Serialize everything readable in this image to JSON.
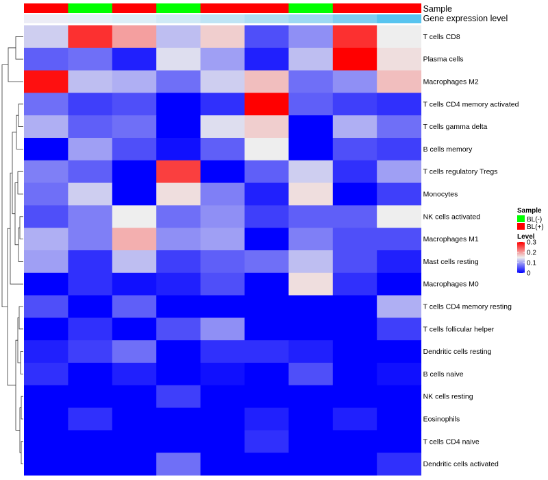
{
  "chart_data": {
    "type": "heatmap",
    "annotation_labels": [
      "Sample",
      "Gene expression level"
    ],
    "sample_groups": [
      "BL(+)",
      "BL(-)",
      "BL(+)",
      "BL(-)",
      "BL(+)",
      "BL(+)",
      "BL(-)",
      "BL(+)",
      "BL(+)"
    ],
    "expression_shades": [
      "#ececf6",
      "#e3f0f8",
      "#dceef7",
      "#cfe9f6",
      "#bfe4f5",
      "#aedef4",
      "#9cd8f3",
      "#7ecef2",
      "#58c4ef"
    ],
    "rows": [
      "T cells CD8",
      "Plasma cells",
      "Macrophages M2",
      "T cells CD4 memory activated",
      "T cells gamma delta",
      "B cells memory",
      "T cells regulatory  Tregs",
      "Monocytes",
      "NK cells activated",
      "Macrophages M1",
      "Mast cells resting",
      "Macrophages M0",
      "T cells CD4 memory resting",
      "T cells follicular helper",
      "Dendritic cells resting",
      "B cells naive",
      "NK cells resting",
      "Eosinophils",
      "T cells CD4 naive",
      "Dendritic cells activated"
    ],
    "values": [
      [
        0.13,
        0.27,
        0.2,
        0.12,
        0.17,
        0.05,
        0.09,
        0.27,
        0.15
      ],
      [
        0.06,
        0.07,
        0.02,
        0.14,
        0.1,
        0.02,
        0.12,
        0.3,
        0.16
      ],
      [
        0.29,
        0.12,
        0.11,
        0.07,
        0.13,
        0.18,
        0.07,
        0.09,
        0.18
      ],
      [
        0.07,
        0.04,
        0.05,
        0.0,
        0.03,
        0.3,
        0.06,
        0.04,
        0.03
      ],
      [
        0.11,
        0.06,
        0.07,
        0.0,
        0.14,
        0.17,
        0.0,
        0.11,
        0.07
      ],
      [
        0.0,
        0.1,
        0.05,
        0.01,
        0.06,
        0.15,
        0.0,
        0.05,
        0.04
      ],
      [
        0.08,
        0.06,
        0.0,
        0.26,
        0.0,
        0.06,
        0.13,
        0.03,
        0.1
      ],
      [
        0.07,
        0.13,
        0.0,
        0.16,
        0.08,
        0.02,
        0.16,
        0.0,
        0.04
      ],
      [
        0.05,
        0.08,
        0.15,
        0.07,
        0.09,
        0.04,
        0.06,
        0.06,
        0.15
      ],
      [
        0.11,
        0.08,
        0.19,
        0.09,
        0.1,
        0.0,
        0.08,
        0.05,
        0.05
      ],
      [
        0.1,
        0.03,
        0.12,
        0.04,
        0.06,
        0.07,
        0.12,
        0.05,
        0.02
      ],
      [
        0.0,
        0.03,
        0.01,
        0.02,
        0.05,
        0.0,
        0.16,
        0.03,
        0.0
      ],
      [
        0.05,
        0.0,
        0.06,
        0.0,
        0.0,
        0.0,
        0.0,
        0.0,
        0.11
      ],
      [
        0.0,
        0.03,
        0.0,
        0.05,
        0.09,
        0.0,
        0.0,
        0.0,
        0.04
      ],
      [
        0.02,
        0.04,
        0.07,
        0.0,
        0.03,
        0.03,
        0.02,
        0.0,
        0.0
      ],
      [
        0.03,
        0.0,
        0.02,
        0.0,
        0.01,
        0.0,
        0.05,
        0.0,
        0.01
      ],
      [
        0.0,
        0.0,
        0.0,
        0.04,
        0.0,
        0.0,
        0.0,
        0.0,
        0.0
      ],
      [
        0.0,
        0.03,
        0.0,
        0.0,
        0.0,
        0.02,
        0.0,
        0.02,
        0.0
      ],
      [
        0.0,
        0.0,
        0.0,
        0.0,
        0.0,
        0.03,
        0.0,
        0.0,
        0.0
      ],
      [
        0.0,
        0.0,
        0.0,
        0.07,
        0.0,
        0.0,
        0.0,
        0.0,
        0.03
      ]
    ],
    "color_scale": {
      "min": 0,
      "mid": 0.15,
      "max": 0.3,
      "low": "#0000ff",
      "midColor": "#eeeeee",
      "high": "#ff0000"
    },
    "legend": {
      "sample_title": "Sample",
      "sample_entries": [
        {
          "label": "BL(-)",
          "color": "#00ff00"
        },
        {
          "label": "BL(+)",
          "color": "#ff0000"
        }
      ],
      "level_title": "Level",
      "level_ticks": [
        {
          "label": "0.3",
          "value": 0.3
        },
        {
          "label": "0.2",
          "value": 0.2
        },
        {
          "label": "0.1",
          "value": 0.1
        },
        {
          "label": "0",
          "value": 0
        }
      ],
      "placement": "right"
    },
    "row_dendrogram": true,
    "grid": false
  }
}
